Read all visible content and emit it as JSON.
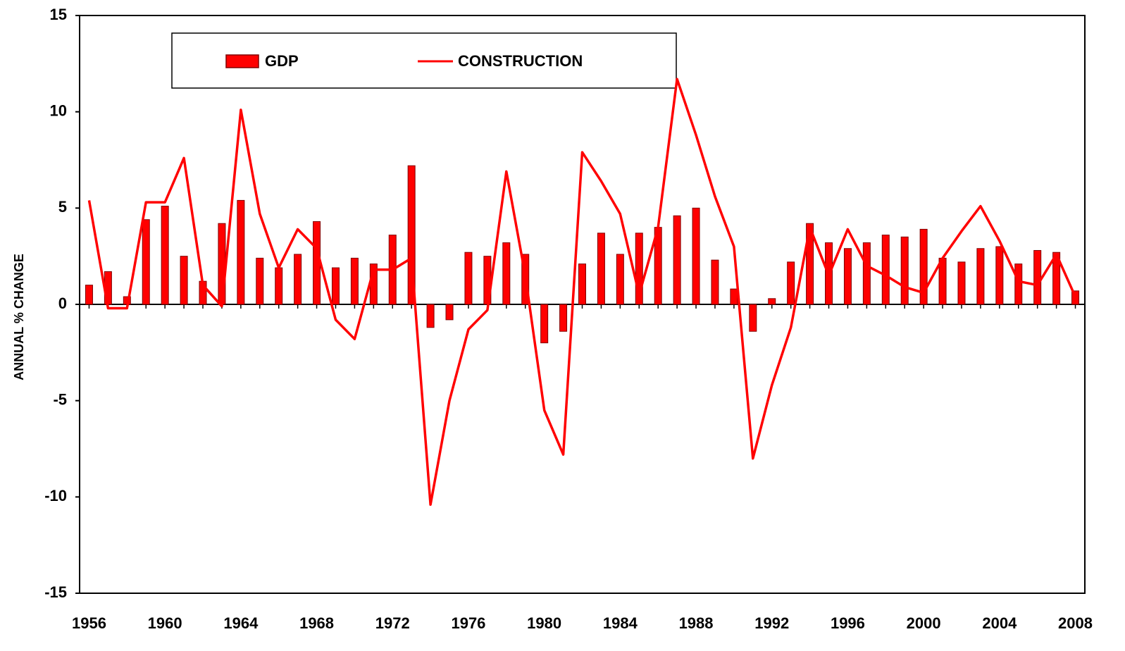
{
  "chart_data": {
    "type": "bar_line",
    "y_axis_label": "ANNUAL % CHANGE",
    "categories": [
      "1956",
      null,
      null,
      null,
      "1960",
      null,
      null,
      null,
      "1964",
      null,
      null,
      null,
      "1968",
      null,
      null,
      null,
      "1972",
      null,
      null,
      null,
      "1976",
      null,
      null,
      null,
      "1980",
      null,
      null,
      null,
      "1984",
      null,
      null,
      null,
      "1988",
      null,
      null,
      null,
      "1992",
      null,
      null,
      null,
      "1996",
      null,
      null,
      null,
      "2000",
      null,
      null,
      null,
      "2004",
      null,
      null,
      null,
      "2008"
    ],
    "series": [
      {
        "name": "GDP",
        "type": "bar",
        "color": "#ff0000",
        "values": [
          1.0,
          1.7,
          0.4,
          4.4,
          5.1,
          2.5,
          1.2,
          4.2,
          5.4,
          2.4,
          1.9,
          2.6,
          4.3,
          1.9,
          2.4,
          2.1,
          3.6,
          7.2,
          -1.2,
          -0.8,
          2.7,
          2.5,
          3.2,
          2.6,
          -2.0,
          -1.4,
          2.1,
          3.7,
          2.6,
          3.7,
          4.0,
          4.6,
          5.0,
          2.3,
          0.8,
          -1.4,
          0.3,
          2.2,
          4.2,
          3.2,
          2.9,
          3.2,
          3.6,
          3.5,
          3.9,
          2.4,
          2.2,
          2.9,
          3.0,
          2.1,
          2.8,
          2.7,
          0.7
        ]
      },
      {
        "name": "CONSTRUCTION",
        "type": "line",
        "color": "#ff0000",
        "values": [
          5.4,
          -0.2,
          -0.2,
          5.3,
          5.3,
          7.6,
          1.0,
          -0.1,
          10.1,
          4.7,
          1.9,
          3.9,
          2.9,
          -0.8,
          -1.8,
          1.8,
          1.8,
          2.4,
          -10.4,
          -5.0,
          -1.3,
          -0.3,
          6.9,
          1.5,
          -5.5,
          -7.8,
          7.9,
          6.4,
          4.7,
          0.5,
          4.0,
          11.7,
          8.8,
          5.6,
          3.0,
          -8.0,
          -4.2,
          -1.2,
          4.0,
          1.5,
          3.9,
          2.0,
          1.5,
          0.9,
          0.6,
          2.4,
          3.8,
          5.1,
          3.3,
          1.2,
          1.0,
          2.6,
          0.4
        ]
      }
    ],
    "ylim": [
      -15,
      15
    ],
    "yticks": [
      -15,
      -10,
      -5,
      0,
      5,
      10,
      15
    ],
    "grid": false
  }
}
